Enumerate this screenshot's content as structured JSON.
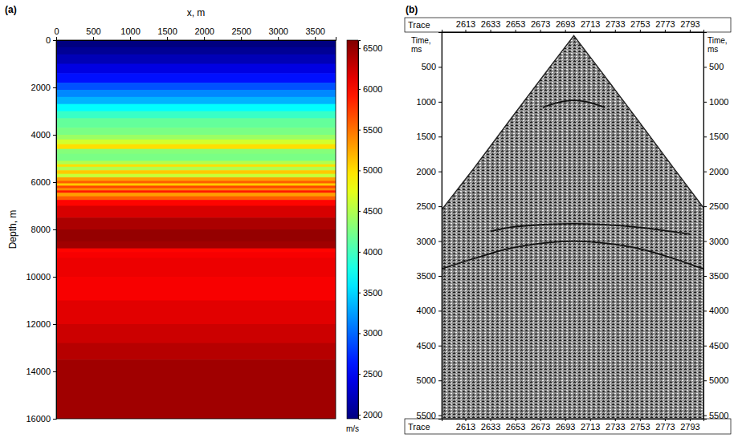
{
  "chart_data": [
    {
      "type": "heatmap",
      "title": "(a)",
      "x_label": "x, m",
      "y_label": "Depth, m",
      "xlim": [
        0,
        3780
      ],
      "xticks": [
        0,
        500,
        1000,
        1500,
        2000,
        2500,
        3000,
        3500
      ],
      "ylim": [
        0,
        16000
      ],
      "yticks": [
        0,
        2000,
        4000,
        6000,
        8000,
        10000,
        12000,
        14000,
        16000
      ],
      "depth_bins": [
        0,
        300,
        600,
        1000,
        1400,
        1800,
        2100,
        2400,
        2700,
        3000,
        3300,
        3700,
        4000,
        4200,
        4400,
        4600,
        4800,
        5100,
        5250,
        5350,
        5500,
        5650,
        5800,
        5950,
        6050,
        6150,
        6250,
        6350,
        6450,
        6600,
        6750,
        7000,
        7500,
        8000,
        8500,
        8800,
        8950,
        9200,
        10000,
        11000,
        12000,
        12800,
        13500,
        16000
      ],
      "values": [
        1950,
        2050,
        2200,
        2400,
        2600,
        2900,
        3150,
        3350,
        3700,
        3950,
        4150,
        4250,
        4400,
        4650,
        5000,
        4300,
        4250,
        4500,
        5000,
        4500,
        5100,
        4600,
        5300,
        5600,
        5100,
        5700,
        5400,
        5900,
        5300,
        5600,
        6000,
        6200,
        6400,
        6500,
        6450,
        6000,
        6050,
        6100,
        6050,
        6150,
        6250,
        6350,
        6450
      ],
      "colorbar": {
        "label": "m/s",
        "range": [
          1950,
          6600
        ],
        "ticks": [
          2000,
          2500,
          3000,
          3500,
          4000,
          4500,
          5000,
          5500,
          6000,
          6500
        ]
      }
    },
    {
      "type": "line",
      "title": "(b)",
      "x_label": "Trace",
      "y_label": "Time, ms",
      "xlim": [
        2594,
        2804
      ],
      "xticks": [
        2613,
        2633,
        2653,
        2673,
        2693,
        2713,
        2733,
        2753,
        2773,
        2793
      ],
      "ylim": [
        0,
        5550
      ],
      "yticks": [
        500,
        1000,
        1500,
        2000,
        2500,
        3000,
        3500,
        4000,
        4500,
        5000,
        5500
      ],
      "series": [
        {
          "type": "area",
          "color": "#8c8c8c",
          "x": [
            2594,
            2620,
            2650,
            2680,
            2700,
            2720,
            2750,
            2780,
            2804
          ],
          "values": [
            2550,
            1950,
            1230,
            520,
            50,
            520,
            1230,
            1950,
            2520
          ]
        },
        {
          "type": "line",
          "color": "#111111",
          "x": [
            2633,
            2650,
            2680,
            2700,
            2720,
            2750,
            2793
          ],
          "values": [
            2860,
            2800,
            2760,
            2750,
            2760,
            2800,
            2900
          ]
        },
        {
          "type": "line",
          "color": "#111111",
          "x": [
            2594,
            2620,
            2650,
            2680,
            2700,
            2720,
            2750,
            2780,
            2804
          ],
          "values": [
            3400,
            3250,
            3100,
            3020,
            3000,
            3020,
            3100,
            3250,
            3400
          ]
        },
        {
          "type": "line",
          "color": "#111111",
          "x": [
            2675,
            2690,
            2700,
            2710,
            2725
          ],
          "values": [
            1080,
            1000,
            980,
            1000,
            1080
          ]
        }
      ]
    }
  ]
}
